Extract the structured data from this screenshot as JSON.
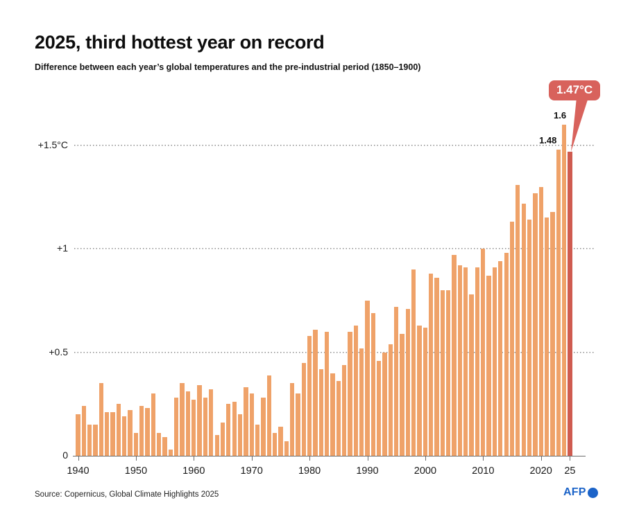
{
  "header": {
    "title": "2025, third hottest year on record",
    "subtitle": "Difference between each year’s global temperatures and the pre-industrial period (1850–1900)"
  },
  "footer": {
    "source": "Source: Copernicus, Global Climate Highlights 2025",
    "logo_text": "AFP"
  },
  "colors": {
    "bar": "#efa269",
    "highlight_bar": "#cf5b50",
    "callout_bg": "#d8625c",
    "grid": "#8c8c8c",
    "afp_blue": "#1b63c8"
  },
  "chart_data": {
    "type": "bar",
    "title": "2025, third hottest year on record",
    "subtitle": "Difference between each year’s global temperatures and the pre-industrial period (1850–1900)",
    "unit": "°C",
    "ylim": [
      0,
      1.7
    ],
    "grid": "dotted horizontal at 0.5, 1.0, 1.5",
    "legend_position": "none",
    "highlight_year": 2025,
    "years": [
      1940,
      1941,
      1942,
      1943,
      1944,
      1945,
      1946,
      1947,
      1948,
      1949,
      1950,
      1951,
      1952,
      1953,
      1954,
      1955,
      1956,
      1957,
      1958,
      1959,
      1960,
      1961,
      1962,
      1963,
      1964,
      1965,
      1966,
      1967,
      1968,
      1969,
      1970,
      1971,
      1972,
      1973,
      1974,
      1975,
      1976,
      1977,
      1978,
      1979,
      1980,
      1981,
      1982,
      1983,
      1984,
      1985,
      1986,
      1987,
      1988,
      1989,
      1990,
      1991,
      1992,
      1993,
      1994,
      1995,
      1996,
      1997,
      1998,
      1999,
      2000,
      2001,
      2002,
      2003,
      2004,
      2005,
      2006,
      2007,
      2008,
      2009,
      2010,
      2011,
      2012,
      2013,
      2014,
      2015,
      2016,
      2017,
      2018,
      2019,
      2020,
      2021,
      2022,
      2023,
      2024,
      2025
    ],
    "values": [
      0.2,
      0.24,
      0.15,
      0.15,
      0.35,
      0.21,
      0.21,
      0.25,
      0.19,
      0.22,
      0.11,
      0.24,
      0.23,
      0.3,
      0.11,
      0.09,
      0.03,
      0.28,
      0.35,
      0.31,
      0.27,
      0.34,
      0.28,
      0.32,
      0.1,
      0.16,
      0.25,
      0.26,
      0.2,
      0.33,
      0.3,
      0.15,
      0.28,
      0.39,
      0.11,
      0.14,
      0.07,
      0.35,
      0.3,
      0.45,
      0.58,
      0.61,
      0.42,
      0.6,
      0.4,
      0.36,
      0.44,
      0.6,
      0.63,
      0.52,
      0.75,
      0.69,
      0.46,
      0.5,
      0.54,
      0.72,
      0.59,
      0.71,
      0.9,
      0.63,
      0.62,
      0.88,
      0.86,
      0.8,
      0.8,
      0.97,
      0.92,
      0.91,
      0.78,
      0.91,
      1.0,
      0.87,
      0.91,
      0.94,
      0.98,
      1.13,
      1.31,
      1.22,
      1.14,
      1.27,
      1.3,
      1.15,
      1.18,
      1.48,
      1.6,
      1.47
    ],
    "yticks": [
      {
        "label": "0",
        "value": 0
      },
      {
        "label": "+0.5",
        "value": 0.5
      },
      {
        "label": "+1",
        "value": 1
      },
      {
        "label": "+1.5°C",
        "value": 1.5
      }
    ],
    "gridlines": [
      0.5,
      1.0,
      1.5
    ],
    "xticks": [
      {
        "label": "1940",
        "year": 1940
      },
      {
        "label": "1950",
        "year": 1950
      },
      {
        "label": "1960",
        "year": 1960
      },
      {
        "label": "1970",
        "year": 1970
      },
      {
        "label": "1980",
        "year": 1980
      },
      {
        "label": "1990",
        "year": 1990
      },
      {
        "label": "2000",
        "year": 2000
      },
      {
        "label": "2010",
        "year": 2010
      },
      {
        "label": "2020",
        "year": 2020
      },
      {
        "label": "25",
        "year": 2025
      }
    ],
    "annotations": {
      "label_2024": {
        "year": 2024,
        "text": "1.6"
      },
      "label_2023": {
        "year": 2023,
        "text": "1.48"
      },
      "callout": {
        "year": 2025,
        "text": "1.47°C"
      }
    }
  }
}
